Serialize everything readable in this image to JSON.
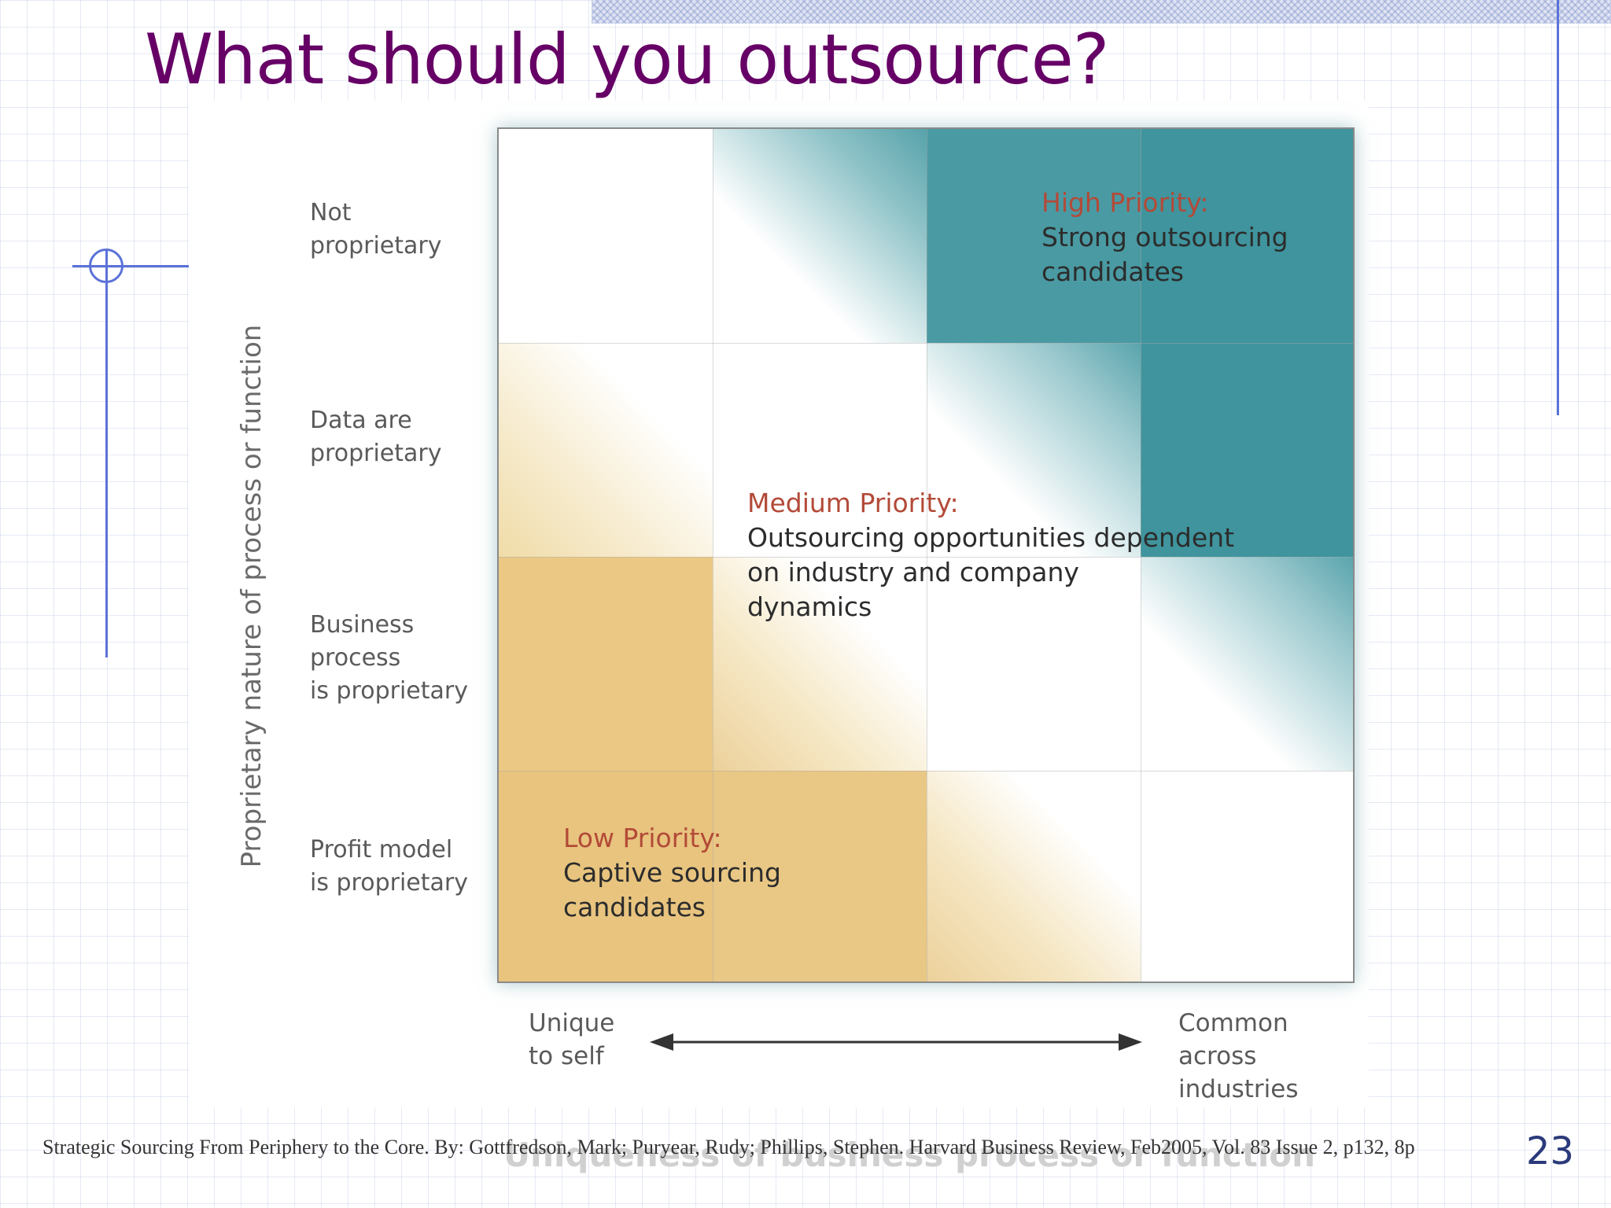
{
  "slide": {
    "title": "What should you outsource?",
    "page_number": "23",
    "citation": "Strategic Sourcing From Periphery to the Core. By: Gottfredson, Mark; Puryear, Rudy; Phillips, Stephen. Harvard Business Review, Feb2005, Vol. 83 Issue 2, p132, 8p"
  },
  "diagram": {
    "y_axis_title": "Proprietary nature of process or function",
    "x_axis_title": "Uniqueness of business process or function",
    "row_labels": [
      "Not\nproprietary",
      "Data are\nproprietary",
      "Business\nprocess\nis proprietary",
      "Profit model\nis proprietary"
    ],
    "x_left_label": "Unique\nto self",
    "x_right_label": "Common\nacross\nindustries",
    "high_priority": {
      "heading": "High Priority:",
      "text": "Strong outsourcing\ncandidates"
    },
    "medium_priority": {
      "heading": "Medium Priority:",
      "text": "Outsourcing opportunities dependent\non industry and company\ndynamics"
    },
    "low_priority": {
      "heading": "Low Priority:",
      "text": "Captive sourcing\ncandidates"
    }
  },
  "colors": {
    "title": "#660066",
    "teal": "#3f949d",
    "tan": "#e8c47f",
    "priority_heading": "#b34a38",
    "deco": "#5b72d8"
  }
}
